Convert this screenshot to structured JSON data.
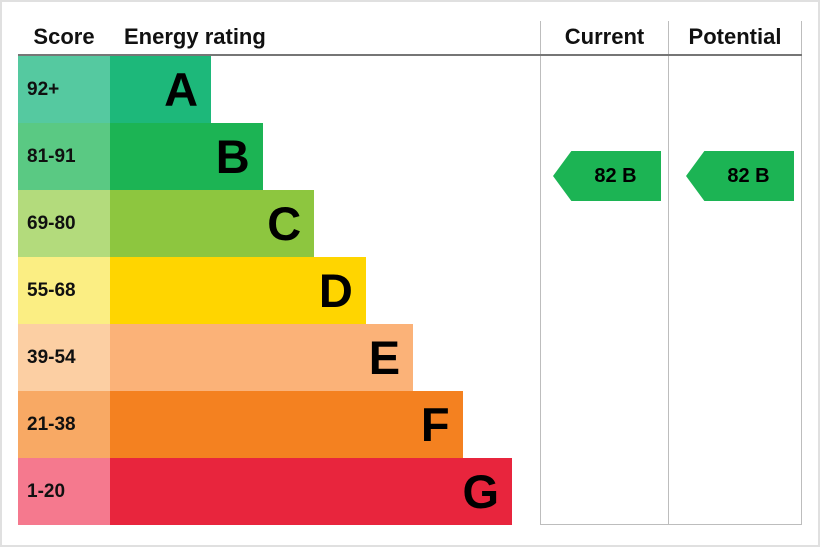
{
  "header": {
    "score": "Score",
    "energy_rating": "Energy rating",
    "current": "Current",
    "potential": "Potential"
  },
  "bands": [
    {
      "letter": "A",
      "score": "92+",
      "bar_color": "#1db87a",
      "score_color": "#55c9a0",
      "width_pct": 23.5
    },
    {
      "letter": "B",
      "score": "81-91",
      "bar_color": "#1cb454",
      "score_color": "#5ac983",
      "width_pct": 35.5
    },
    {
      "letter": "C",
      "score": "69-80",
      "bar_color": "#8dc63f",
      "score_color": "#b3db7c",
      "width_pct": 47.5
    },
    {
      "letter": "D",
      "score": "55-68",
      "bar_color": "#ffd500",
      "score_color": "#fbee83",
      "width_pct": 59.5
    },
    {
      "letter": "E",
      "score": "39-54",
      "bar_color": "#fbb278",
      "score_color": "#fccfa3",
      "width_pct": 70.5
    },
    {
      "letter": "F",
      "score": "21-38",
      "bar_color": "#f48120",
      "score_color": "#f8a964",
      "width_pct": 82
    },
    {
      "letter": "G",
      "score": "1-20",
      "bar_color": "#e8253d",
      "score_color": "#f5798e",
      "width_pct": 93.5
    }
  ],
  "current": {
    "label": "82 B",
    "color": "#1cb454"
  },
  "potential": {
    "label": "82 B",
    "color": "#1cb454"
  },
  "chart_data": {
    "type": "bar",
    "title": "Energy rating",
    "categories": [
      "A",
      "B",
      "C",
      "D",
      "E",
      "F",
      "G"
    ],
    "score_ranges": [
      "92+",
      "81-91",
      "69-80",
      "55-68",
      "39-54",
      "21-38",
      "1-20"
    ],
    "bar_widths_relative": [
      0.235,
      0.355,
      0.475,
      0.595,
      0.705,
      0.82,
      0.935
    ],
    "colors": [
      "#1db87a",
      "#1cb454",
      "#8dc63f",
      "#ffd500",
      "#fbb278",
      "#f48120",
      "#e8253d"
    ],
    "current": {
      "score": 82,
      "band": "B"
    },
    "potential": {
      "score": 82,
      "band": "B"
    },
    "legend_position": "none",
    "grid": false
  }
}
